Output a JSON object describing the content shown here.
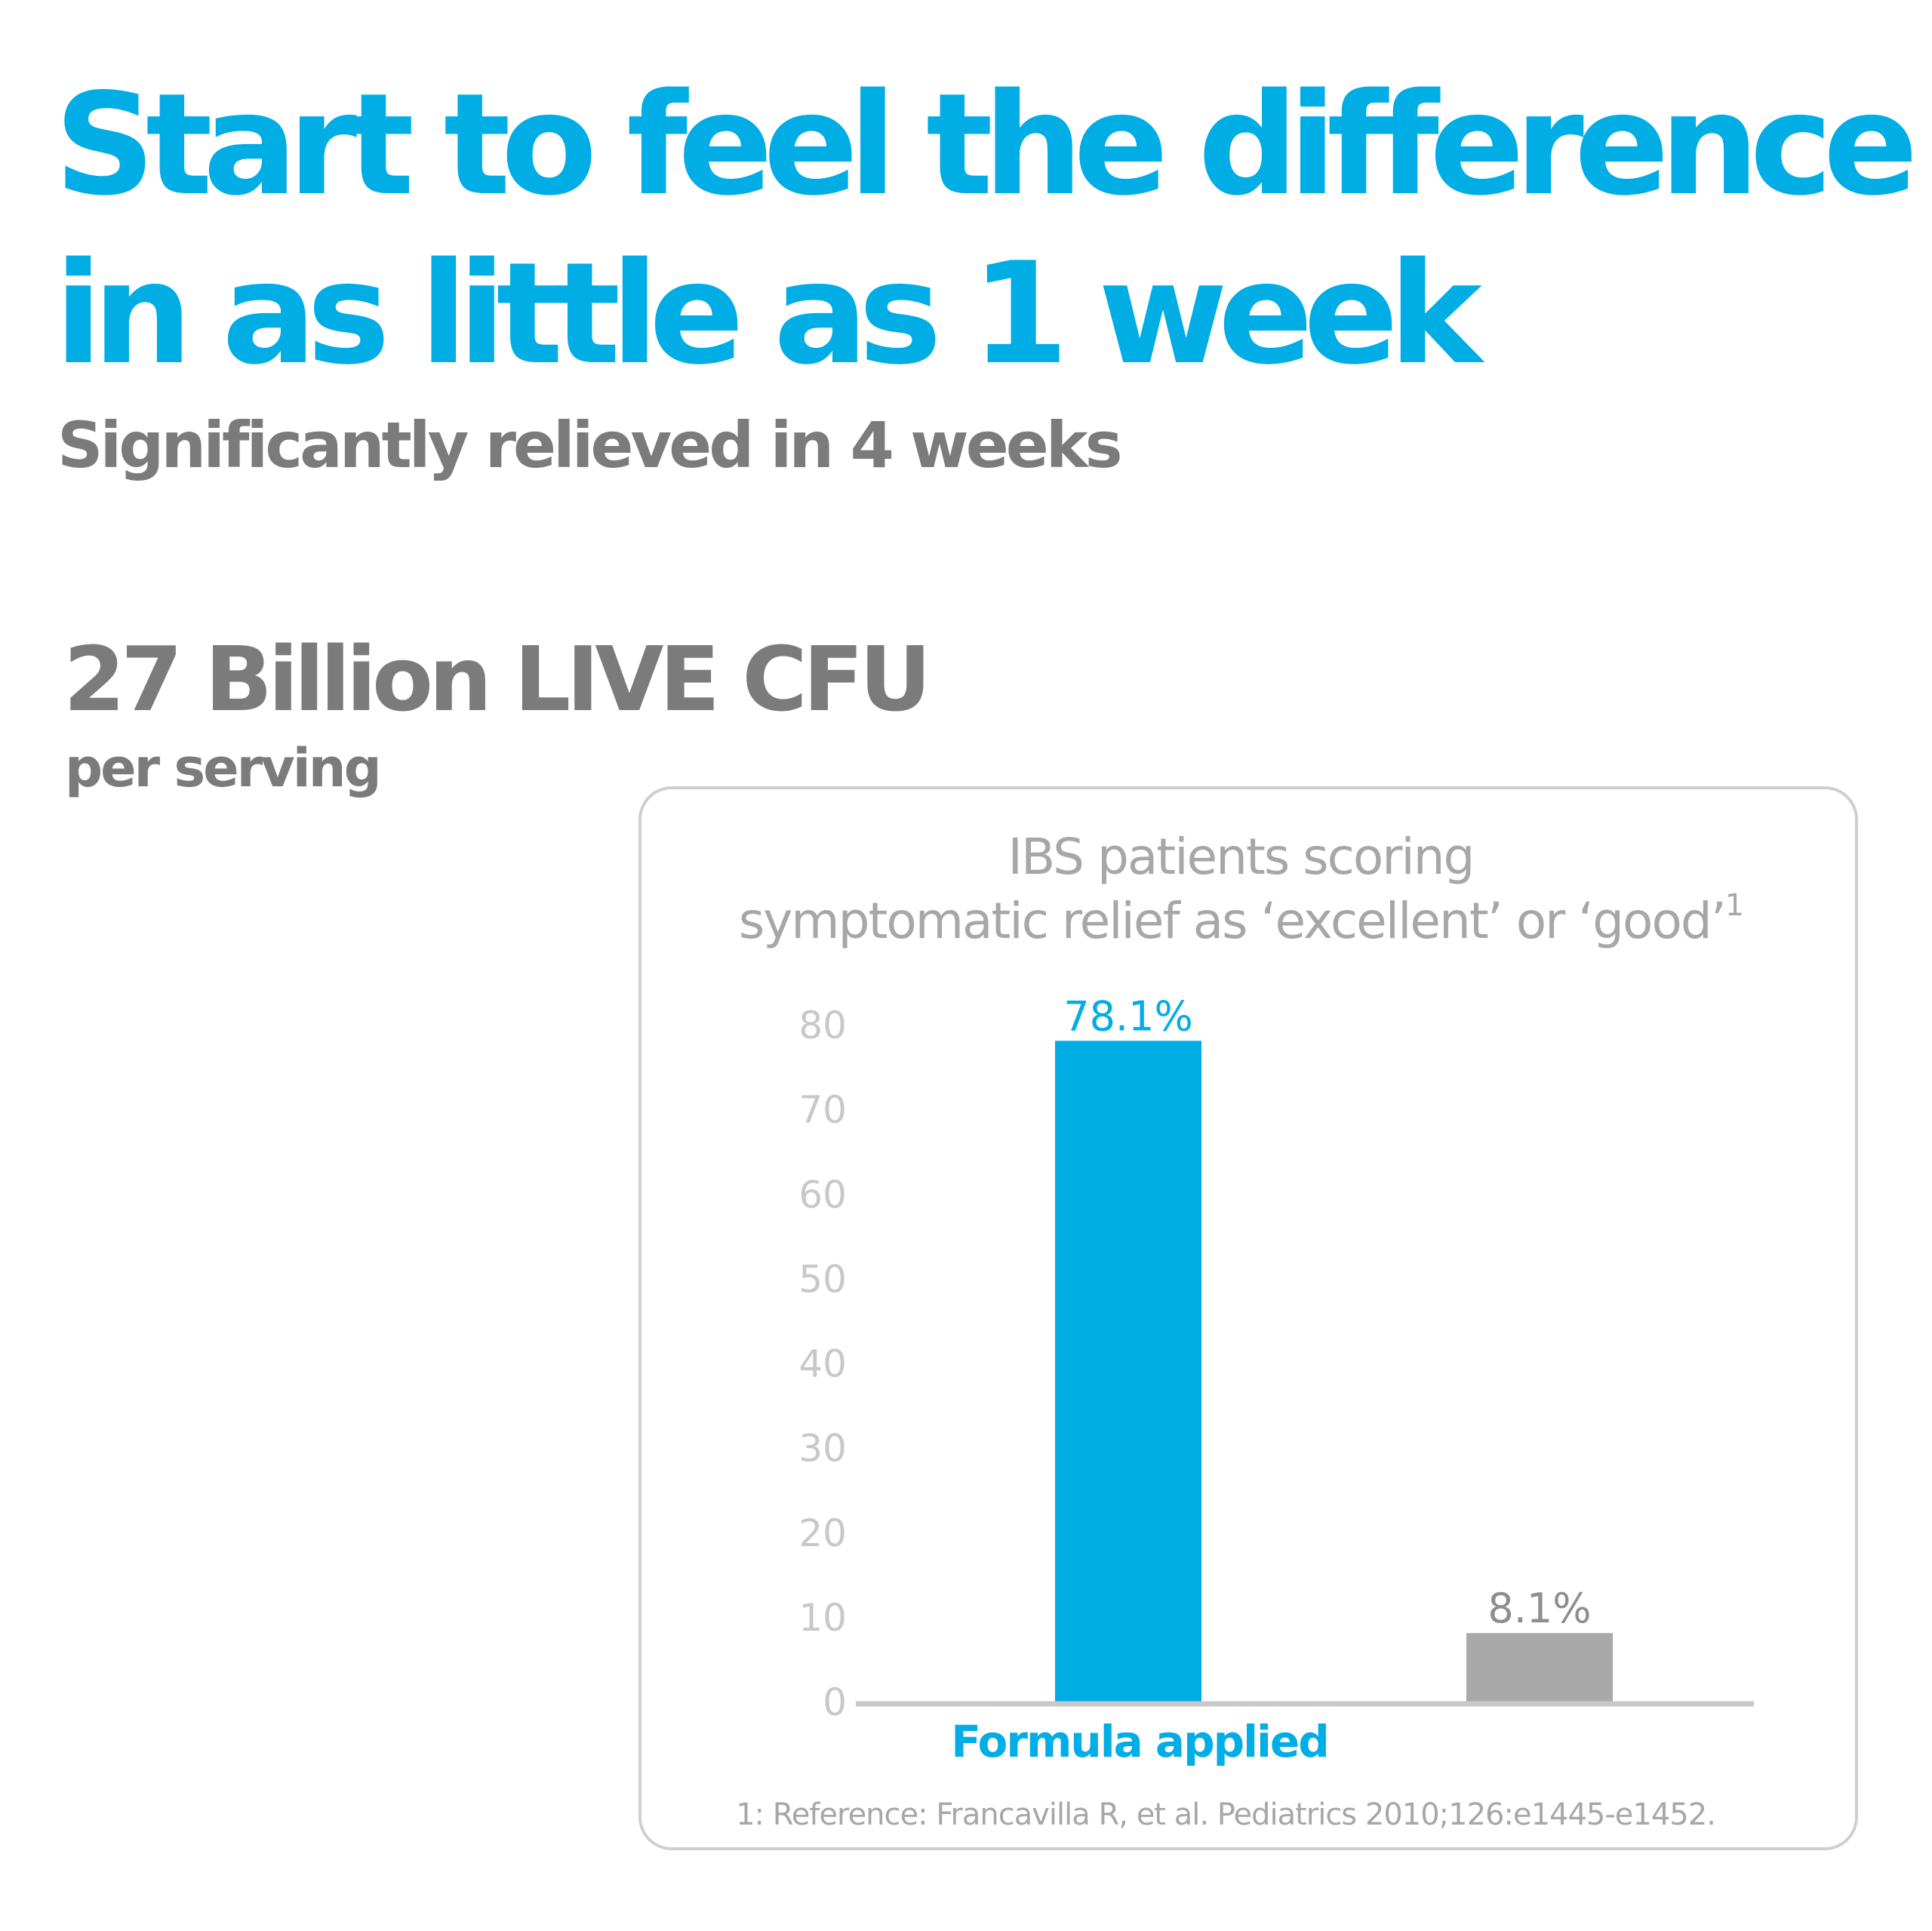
{
  "headline": {
    "line1": "Start to feel the difference",
    "line2": "in as little as 1 week"
  },
  "subheadline": "Significantly relieved in 4 weeks",
  "cfu": {
    "amount": "27 Billion LIVE CFU",
    "unit": "per serving"
  },
  "colors": {
    "brand_blue": "#00ade5",
    "text_gray": "#7b7b7b",
    "axis_gray": "#c8c8c8",
    "bar_gray": "#a9a9a9",
    "title_gray": "#a7a7a7"
  },
  "chart_data": {
    "type": "bar",
    "title_line1": "IBS patients scoring",
    "title_line2": "symptomatic relief as ‘excellent’ or ‘good’",
    "title_superscript": "1",
    "categories": [
      "Formula applied",
      ""
    ],
    "values": [
      78.1,
      8.1
    ],
    "data_labels": [
      "78.1%",
      "8.1%"
    ],
    "bar_colors": [
      "#00ade5",
      "#a9a9a9"
    ],
    "y_ticks": [
      0,
      10,
      20,
      30,
      40,
      50,
      60,
      70,
      80
    ],
    "y_tick_labels": [
      "0",
      "10",
      "20",
      "30",
      "40",
      "50",
      "60",
      "70",
      "80"
    ],
    "ylim": [
      0,
      80
    ],
    "grid": false,
    "xlabel": "",
    "ylabel": "",
    "footnote": "1: Reference: Francavilla R, et al. Pediatrics 2010;126:e1445-e1452."
  }
}
